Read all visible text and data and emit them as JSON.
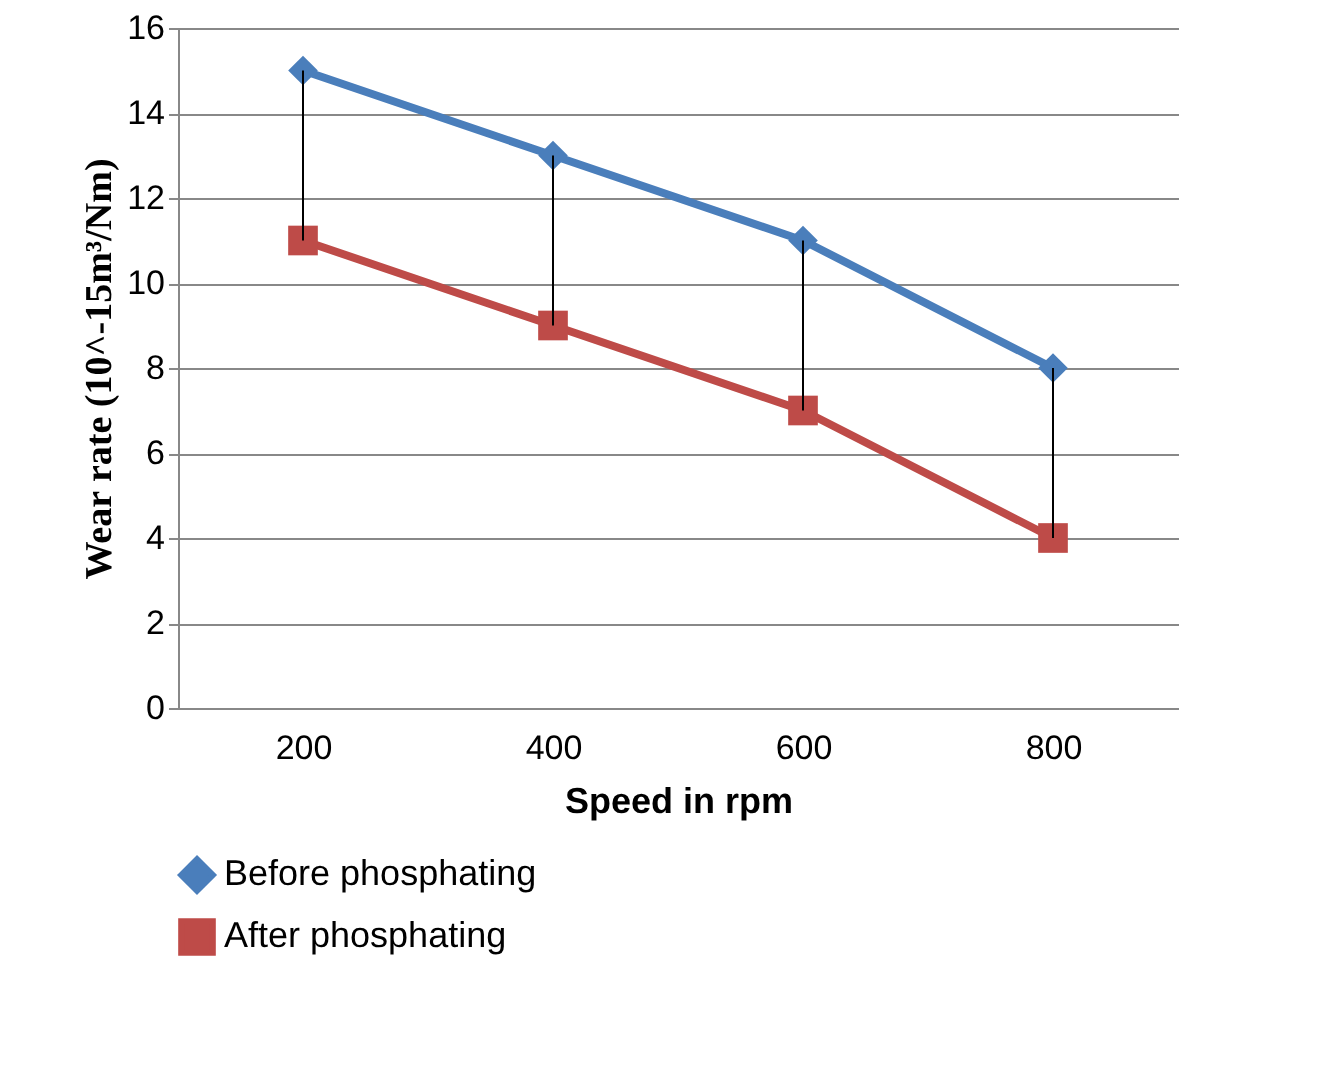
{
  "chart_data": {
    "type": "line",
    "xlabel": "Speed  in rpm",
    "ylabel": "Wear rate (10^-15m³/Nm)",
    "categories": [
      "200",
      "400",
      "600",
      "800"
    ],
    "series": [
      {
        "name": "Before phosphating",
        "color": "#4a7ebb",
        "marker": "diamond",
        "values": [
          15,
          13,
          11,
          8
        ],
        "errors": [
          [
            11,
            15
          ],
          [
            9,
            13
          ],
          [
            7,
            11
          ],
          [
            4,
            8
          ]
        ]
      },
      {
        "name": "After phosphating",
        "color": "#be4b48",
        "marker": "square",
        "values": [
          11,
          9,
          7,
          4
        ]
      }
    ],
    "ylim": [
      0,
      16
    ],
    "yticks": [
      0,
      2,
      4,
      6,
      8,
      10,
      12,
      14,
      16
    ],
    "grid": "y",
    "legend": "bottom",
    "line_style": "solid"
  }
}
